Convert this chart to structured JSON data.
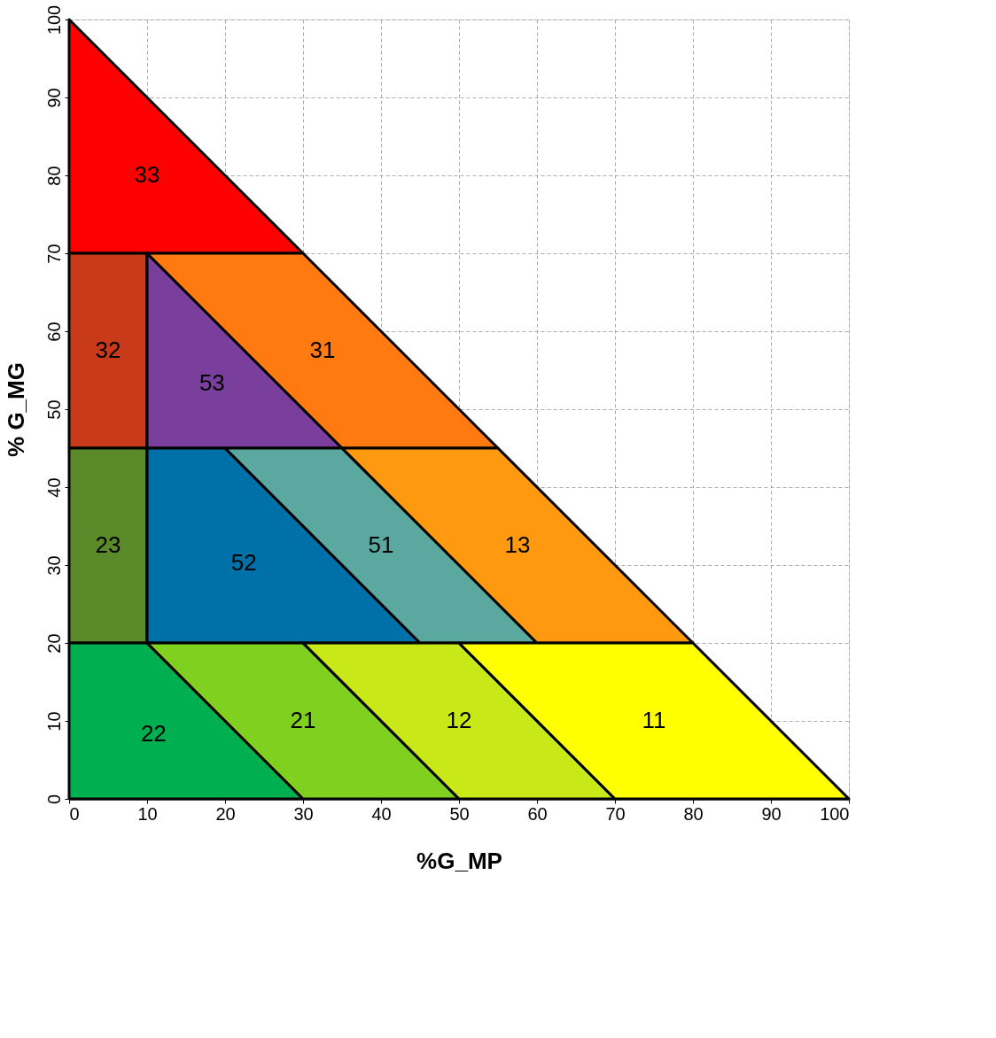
{
  "chart_data": {
    "type": "area",
    "xlabel": "%G_MP",
    "ylabel": "% G_MG",
    "xlim": [
      0,
      100
    ],
    "ylim": [
      0,
      100
    ],
    "xticks": [
      0,
      10,
      20,
      30,
      40,
      50,
      60,
      70,
      80,
      90,
      100
    ],
    "yticks": [
      0,
      10,
      20,
      30,
      40,
      50,
      60,
      70,
      80,
      90,
      100
    ],
    "grid": true,
    "line_style": "dashed",
    "series": [
      {
        "name": "33",
        "color": "#ff0000",
        "x": [
          0,
          30,
          0,
          0
        ],
        "values": [
          70,
          70,
          100,
          70
        ]
      },
      {
        "name": "32",
        "color": "#c83a1a",
        "x": [
          0,
          10,
          10,
          0,
          0
        ],
        "values": [
          45,
          45,
          70,
          70,
          45
        ]
      },
      {
        "name": "53",
        "color": "#7a3f9c",
        "x": [
          10,
          35,
          10,
          10
        ],
        "values": [
          45,
          45,
          70,
          45
        ]
      },
      {
        "name": "31",
        "color": "#ff7a10",
        "x": [
          10,
          30,
          55,
          35,
          10
        ],
        "values": [
          70,
          70,
          45,
          45,
          70
        ]
      },
      {
        "name": "23",
        "color": "#5a8a2a",
        "x": [
          0,
          10,
          10,
          0,
          0
        ],
        "values": [
          20,
          20,
          45,
          45,
          20
        ]
      },
      {
        "name": "52",
        "color": "#0070a8",
        "x": [
          10,
          45,
          20,
          10,
          10
        ],
        "values": [
          20,
          20,
          45,
          45,
          20
        ]
      },
      {
        "name": "51",
        "color": "#5aa8a0",
        "x": [
          45,
          60,
          35,
          20,
          45
        ],
        "values": [
          20,
          20,
          45,
          45,
          20
        ]
      },
      {
        "name": "13",
        "color": "#ff9a10",
        "x": [
          60,
          80,
          55,
          35,
          60
        ],
        "values": [
          20,
          20,
          45,
          45,
          20
        ]
      },
      {
        "name": "22",
        "color": "#00b050",
        "x": [
          0,
          30,
          10,
          0,
          0
        ],
        "values": [
          0,
          0,
          20,
          20,
          0
        ]
      },
      {
        "name": "21",
        "color": "#80d020",
        "x": [
          30,
          50,
          30,
          10,
          30
        ],
        "values": [
          0,
          0,
          20,
          20,
          0
        ]
      },
      {
        "name": "12",
        "color": "#c8e818",
        "x": [
          50,
          70,
          50,
          30,
          50
        ],
        "values": [
          0,
          0,
          20,
          20,
          0
        ]
      },
      {
        "name": "11",
        "color": "#ffff00",
        "x": [
          70,
          100,
          80,
          50,
          70
        ],
        "values": [
          0,
          0,
          20,
          20,
          0
        ]
      }
    ]
  }
}
